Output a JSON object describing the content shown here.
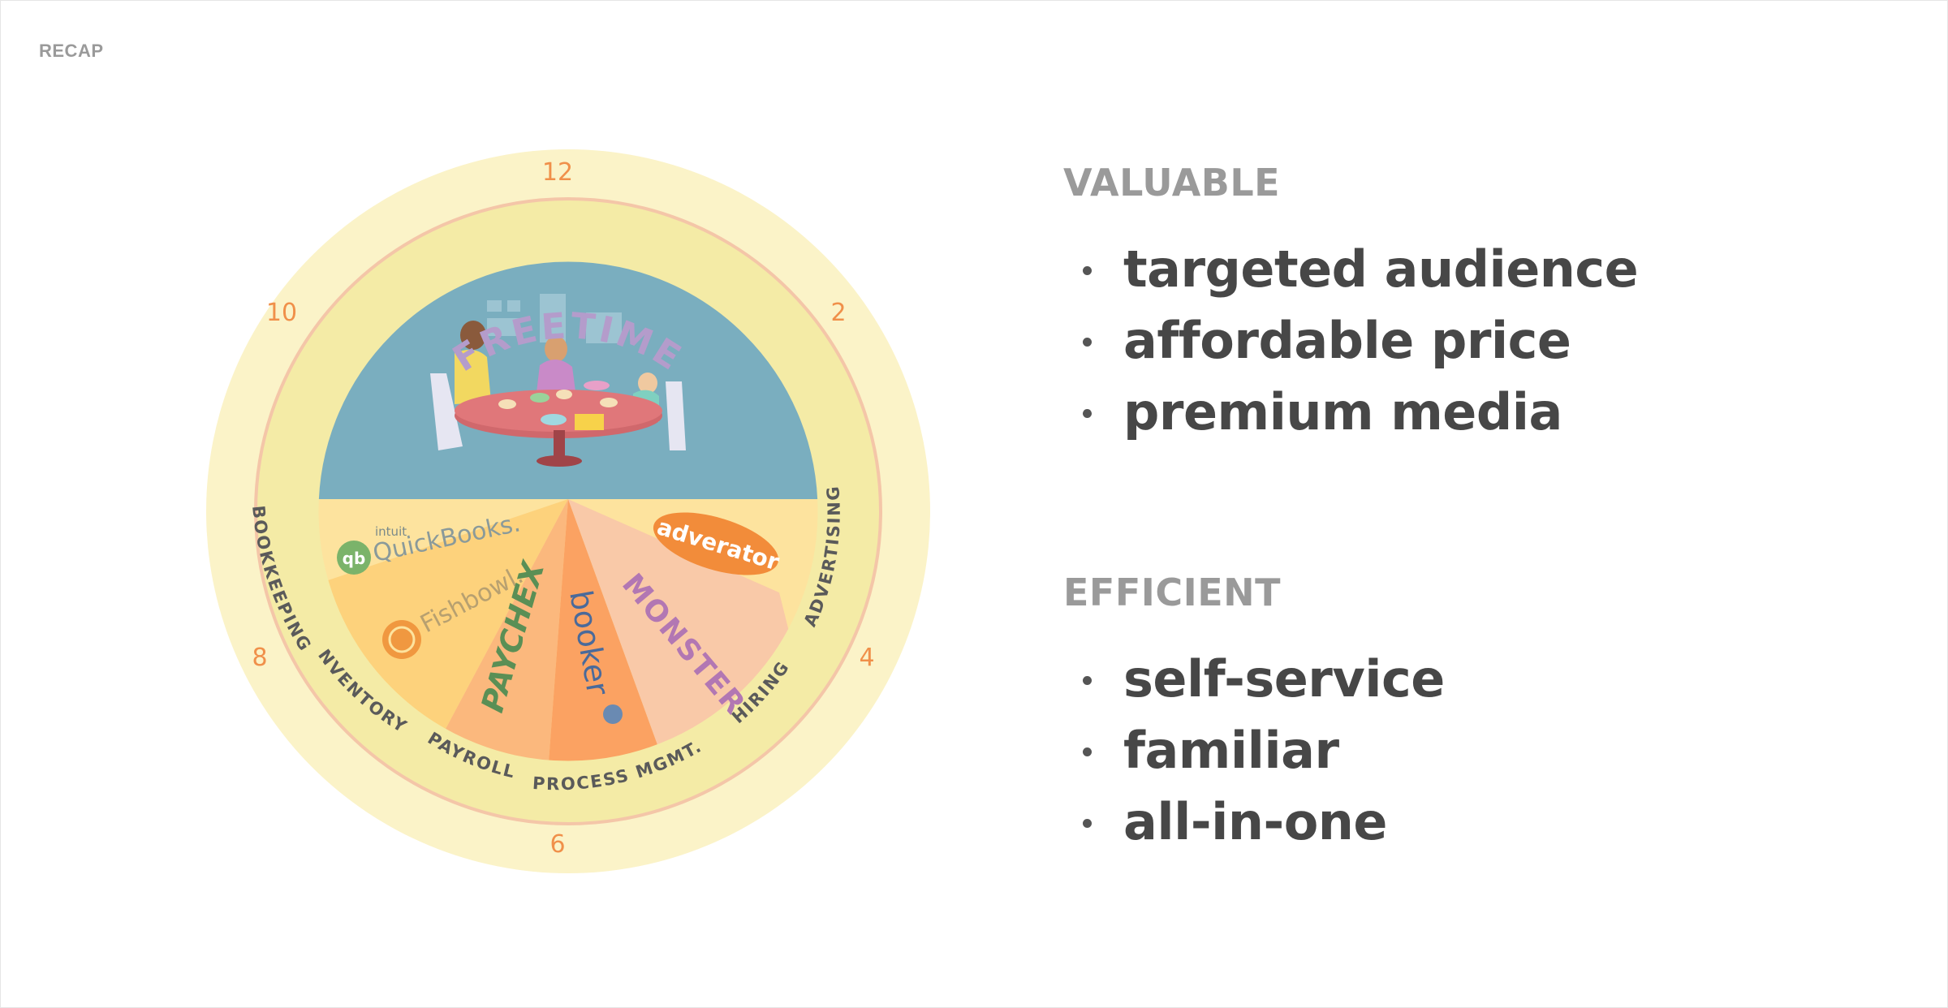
{
  "header": {
    "label": "RECAP"
  },
  "clock": {
    "hours": {
      "h12": "12",
      "h2": "2",
      "h4": "4",
      "h6": "6",
      "h8": "8",
      "h10": "10"
    },
    "title": "FREETIME",
    "categories": {
      "bookkeeping": "BOOKKEEPING",
      "inventory": "INVENTORY",
      "payroll": "PAYROLL",
      "process": "PROCESS MGMT.",
      "hiring": "HIRING",
      "advertising": "ADVERTISING"
    },
    "brands": {
      "intuit": "intuit",
      "quickbooks": "QuickBooks.",
      "fishbowl": "Fishbowl.",
      "paychex": "PAYCHEX",
      "booker": "booker",
      "monster": "MONSTER",
      "adverator": "adverator"
    },
    "colors": {
      "outer_ring": "#fbf3c8",
      "inner_ring": "#f4eba6",
      "ring_line": "#f4c6a8",
      "sky": "#7aaebf",
      "hour_numbers": "#f0904a",
      "title": "#b49ccb"
    }
  },
  "sections": [
    {
      "title": "VALUABLE",
      "items": [
        "targeted audience",
        "affordable price",
        "premium media"
      ]
    },
    {
      "title": "EFFICIENT",
      "items": [
        "self-service",
        "familiar",
        "all-in-one"
      ]
    }
  ]
}
